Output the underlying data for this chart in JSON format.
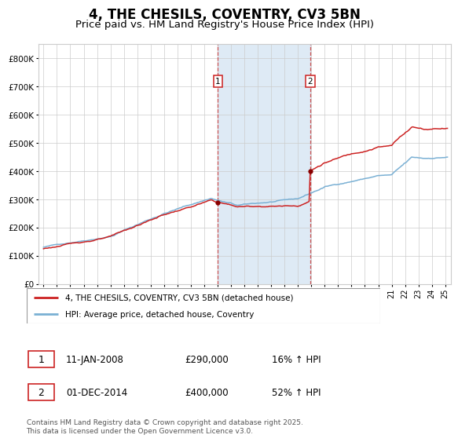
{
  "title": "4, THE CHESILS, COVENTRY, CV3 5BN",
  "subtitle": "Price paid vs. HM Land Registry's House Price Index (HPI)",
  "ylim": [
    0,
    850000
  ],
  "yticks": [
    0,
    100000,
    200000,
    300000,
    400000,
    500000,
    600000,
    700000,
    800000
  ],
  "ytick_labels": [
    "£0",
    "£100K",
    "£200K",
    "£300K",
    "£400K",
    "£500K",
    "£600K",
    "£700K",
    "£800K"
  ],
  "year_start": 1995,
  "year_end": 2025,
  "sale1_date": 2008.03,
  "sale1_price": 290000,
  "sale2_date": 2014.92,
  "sale2_price": 400000,
  "sale1_display": "11-JAN-2008",
  "sale1_pct": "16%",
  "sale2_display": "01-DEC-2014",
  "sale2_pct": "52%",
  "hpi_color": "#7ab0d4",
  "price_color": "#cc2222",
  "sale_marker_color": "#880000",
  "shade_color": "#deeaf5",
  "grid_color": "#cccccc",
  "bg_color": "#ffffff",
  "legend_label1": "4, THE CHESILS, COVENTRY, CV3 5BN (detached house)",
  "legend_label2": "HPI: Average price, detached house, Coventry",
  "footer": "Contains HM Land Registry data © Crown copyright and database right 2025.\nThis data is licensed under the Open Government Licence v3.0.",
  "title_fontsize": 12,
  "subtitle_fontsize": 9.5
}
